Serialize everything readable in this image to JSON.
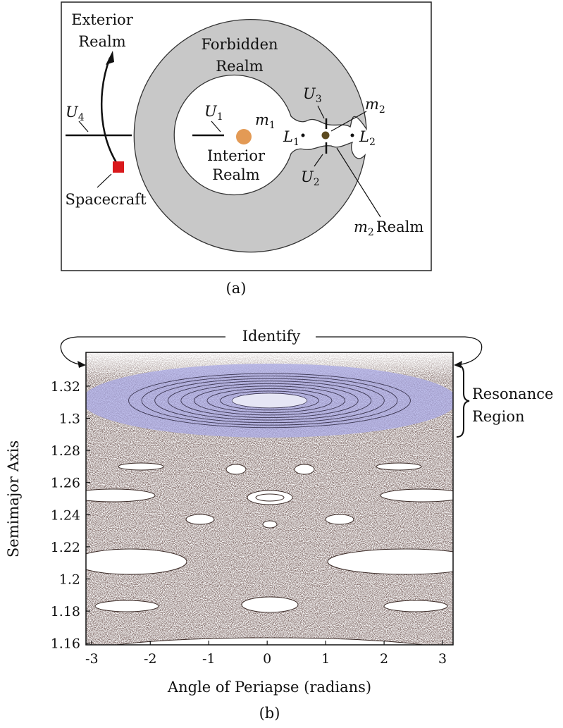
{
  "panel_a": {
    "caption": "(a)",
    "exterior": [
      "Exterior",
      "Realm"
    ],
    "forbidden": [
      "Forbidden",
      "Realm"
    ],
    "interior": [
      "Interior",
      "Realm"
    ],
    "spacecraft": "Spacecraft",
    "m2_realm": {
      "symbol": "m",
      "sub": "2",
      "text": "Realm"
    },
    "U1": {
      "symbol": "U",
      "sub": "1"
    },
    "U2": {
      "symbol": "U",
      "sub": "2"
    },
    "U3": {
      "symbol": "U",
      "sub": "3"
    },
    "U4": {
      "symbol": "U",
      "sub": "4"
    },
    "L1": {
      "symbol": "L",
      "sub": "1"
    },
    "L2": {
      "symbol": "L",
      "sub": "2"
    },
    "m1": {
      "symbol": "m",
      "sub": "1"
    },
    "m2": {
      "symbol": "m",
      "sub": "2"
    }
  },
  "chart_data": {
    "type": "poincare-map",
    "caption": "(b)",
    "xlabel": "Angle of Periapse (radians)",
    "ylabel": "Semimajor Axis",
    "xlim": [
      -3.1,
      3.18
    ],
    "ylim": [
      1.159,
      1.341
    ],
    "xticks": [
      -3,
      -2,
      -1,
      0,
      1,
      2,
      3
    ],
    "yticks": [
      1.16,
      1.18,
      1.2,
      1.22,
      1.24,
      1.26,
      1.28,
      1.3,
      1.32
    ],
    "top_annotation": "Identify",
    "resonance_label": [
      "Resonance",
      "Region"
    ],
    "resonance_region": {
      "ylim": [
        1.288,
        1.334
      ],
      "color": "#a9a9e6"
    }
  }
}
